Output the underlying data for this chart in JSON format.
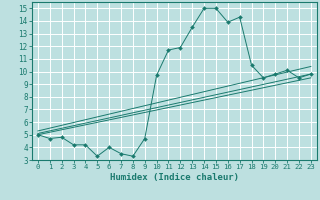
{
  "xlabel": "Humidex (Indice chaleur)",
  "xlim": [
    -0.5,
    23.5
  ],
  "ylim": [
    3,
    15.5
  ],
  "xticks": [
    0,
    1,
    2,
    3,
    4,
    5,
    6,
    7,
    8,
    9,
    10,
    11,
    12,
    13,
    14,
    15,
    16,
    17,
    18,
    19,
    20,
    21,
    22,
    23
  ],
  "yticks": [
    3,
    4,
    5,
    6,
    7,
    8,
    9,
    10,
    11,
    12,
    13,
    14,
    15
  ],
  "bg_color": "#bde0e0",
  "line_color": "#1a7a6e",
  "grid_color": "#ffffff",
  "main_x": [
    0,
    1,
    2,
    3,
    4,
    5,
    6,
    7,
    8,
    9,
    10,
    11,
    12,
    13,
    14,
    15,
    16,
    17,
    18,
    19,
    20,
    21,
    22,
    23
  ],
  "main_y": [
    5.0,
    4.7,
    4.8,
    4.2,
    4.2,
    3.3,
    4.0,
    3.5,
    3.3,
    4.7,
    9.7,
    11.7,
    11.9,
    13.5,
    15.0,
    15.0,
    13.9,
    14.3,
    10.5,
    9.5,
    9.8,
    10.1,
    9.5,
    9.8
  ],
  "straight_lines": [
    [
      [
        0,
        5.0
      ],
      [
        23,
        9.5
      ]
    ],
    [
      [
        0,
        5.1
      ],
      [
        23,
        9.8
      ]
    ],
    [
      [
        0,
        5.3
      ],
      [
        23,
        10.4
      ]
    ]
  ]
}
